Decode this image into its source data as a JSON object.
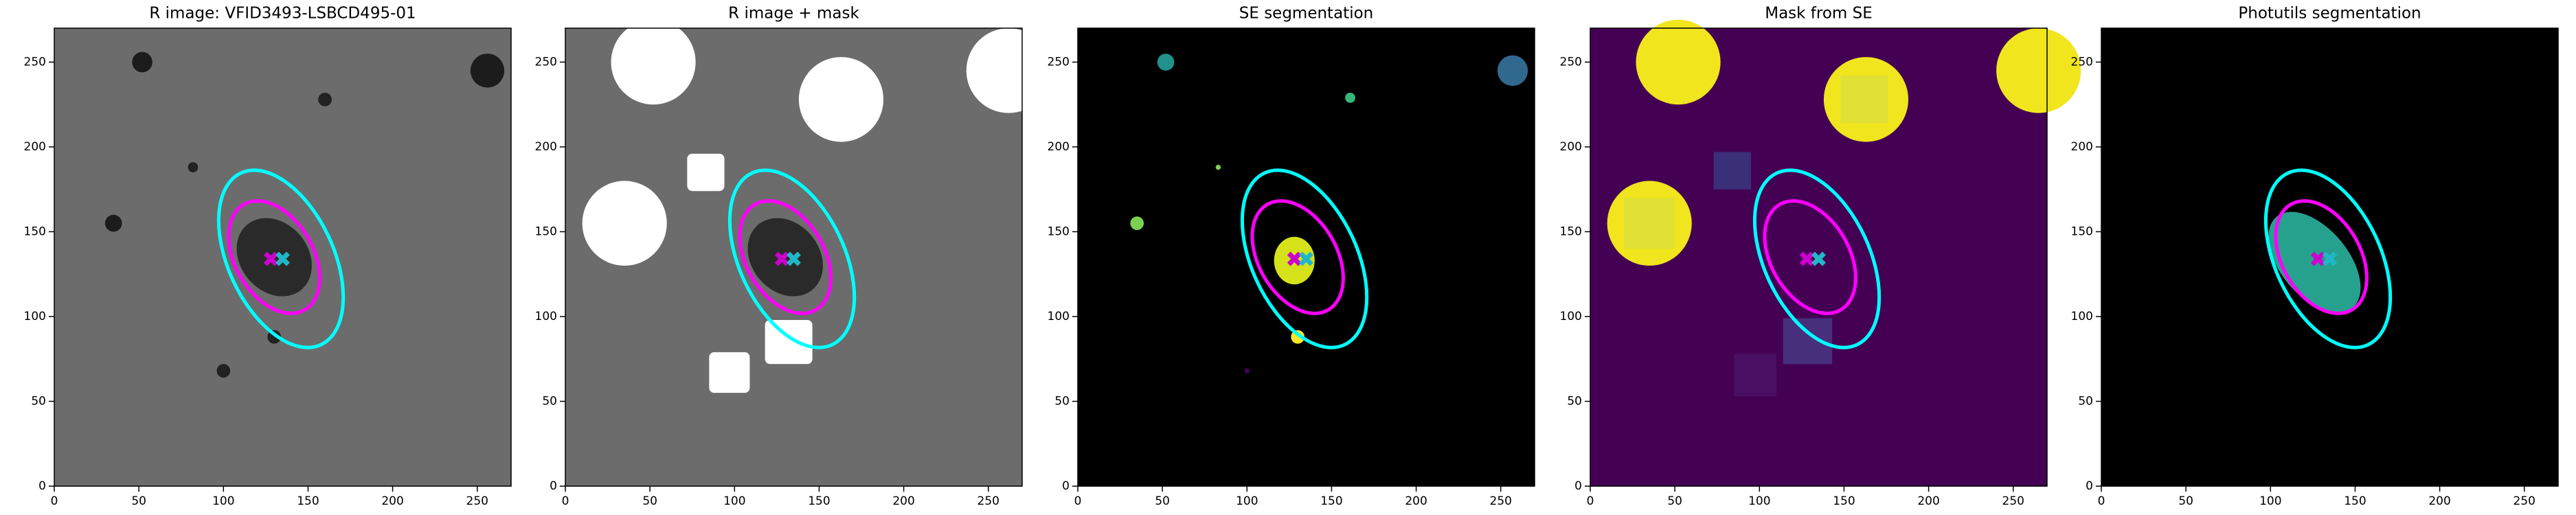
{
  "chart_data": [
    {
      "type": "image",
      "title": "R image: VFID3493-LSBCD495-01",
      "xlim": [
        0,
        270
      ],
      "ylim": [
        0,
        270
      ],
      "xticks": [
        0,
        50,
        100,
        150,
        200,
        250
      ],
      "yticks": [
        0,
        50,
        100,
        150,
        200,
        250
      ],
      "ellipses": [
        {
          "color": "#00ffff",
          "cx": 134,
          "cy": 134,
          "a": 56,
          "b": 31,
          "angle": 115
        },
        {
          "color": "#ff00ff",
          "cx": 130,
          "cy": 135,
          "a": 36,
          "b": 23,
          "angle": 120
        }
      ],
      "markers": [
        {
          "color": "#cc00cc",
          "x": 128,
          "y": 134
        },
        {
          "color": "#20b8c8",
          "x": 135,
          "y": 134
        }
      ]
    },
    {
      "type": "image",
      "title": "R image + mask",
      "xlim": [
        0,
        270
      ],
      "ylim": [
        0,
        270
      ],
      "xticks": [
        0,
        50,
        100,
        150,
        200,
        250
      ],
      "yticks": [
        0,
        50,
        100,
        150,
        200,
        250
      ],
      "ellipses": [
        {
          "color": "#00ffff",
          "cx": 134,
          "cy": 134,
          "a": 56,
          "b": 31,
          "angle": 115
        },
        {
          "color": "#ff00ff",
          "cx": 130,
          "cy": 135,
          "a": 36,
          "b": 23,
          "angle": 120
        }
      ],
      "markers": [
        {
          "color": "#cc00cc",
          "x": 128,
          "y": 134
        },
        {
          "color": "#20b8c8",
          "x": 135,
          "y": 134
        }
      ]
    },
    {
      "type": "image",
      "title": "SE segmentation",
      "xlim": [
        0,
        270
      ],
      "ylim": [
        0,
        270
      ],
      "xticks": [
        0,
        50,
        100,
        150,
        200,
        250
      ],
      "yticks": [
        0,
        50,
        100,
        150,
        200,
        250
      ],
      "ellipses": [
        {
          "color": "#00ffff",
          "cx": 134,
          "cy": 134,
          "a": 56,
          "b": 31,
          "angle": 115
        },
        {
          "color": "#ff00ff",
          "cx": 130,
          "cy": 135,
          "a": 36,
          "b": 23,
          "angle": 120
        }
      ],
      "markers": [
        {
          "color": "#cc00cc",
          "x": 128,
          "y": 134
        },
        {
          "color": "#20b8c8",
          "x": 135,
          "y": 134
        }
      ]
    },
    {
      "type": "image",
      "title": "Mask from SE",
      "xlim": [
        0,
        270
      ],
      "ylim": [
        0,
        270
      ],
      "xticks": [
        0,
        50,
        100,
        150,
        200,
        250
      ],
      "yticks": [
        0,
        50,
        100,
        150,
        200,
        250
      ],
      "ellipses": [
        {
          "color": "#00ffff",
          "cx": 134,
          "cy": 134,
          "a": 56,
          "b": 31,
          "angle": 115
        },
        {
          "color": "#ff00ff",
          "cx": 130,
          "cy": 135,
          "a": 36,
          "b": 23,
          "angle": 120
        }
      ],
      "markers": [
        {
          "color": "#cc00cc",
          "x": 128,
          "y": 134
        },
        {
          "color": "#20b8c8",
          "x": 135,
          "y": 134
        }
      ]
    },
    {
      "type": "image",
      "title": "Photutils segmentation",
      "xlim": [
        0,
        270
      ],
      "ylim": [
        0,
        270
      ],
      "xticks": [
        0,
        50,
        100,
        150,
        200,
        250
      ],
      "yticks": [
        0,
        50,
        100,
        150,
        200,
        250
      ],
      "ellipses": [
        {
          "color": "#00ffff",
          "cx": 134,
          "cy": 134,
          "a": 56,
          "b": 31,
          "angle": 115
        },
        {
          "color": "#ff00ff",
          "cx": 130,
          "cy": 135,
          "a": 36,
          "b": 23,
          "angle": 120
        }
      ],
      "markers": [
        {
          "color": "#cc00cc",
          "x": 128,
          "y": 134
        },
        {
          "color": "#20b8c8",
          "x": 135,
          "y": 134
        }
      ]
    }
  ]
}
